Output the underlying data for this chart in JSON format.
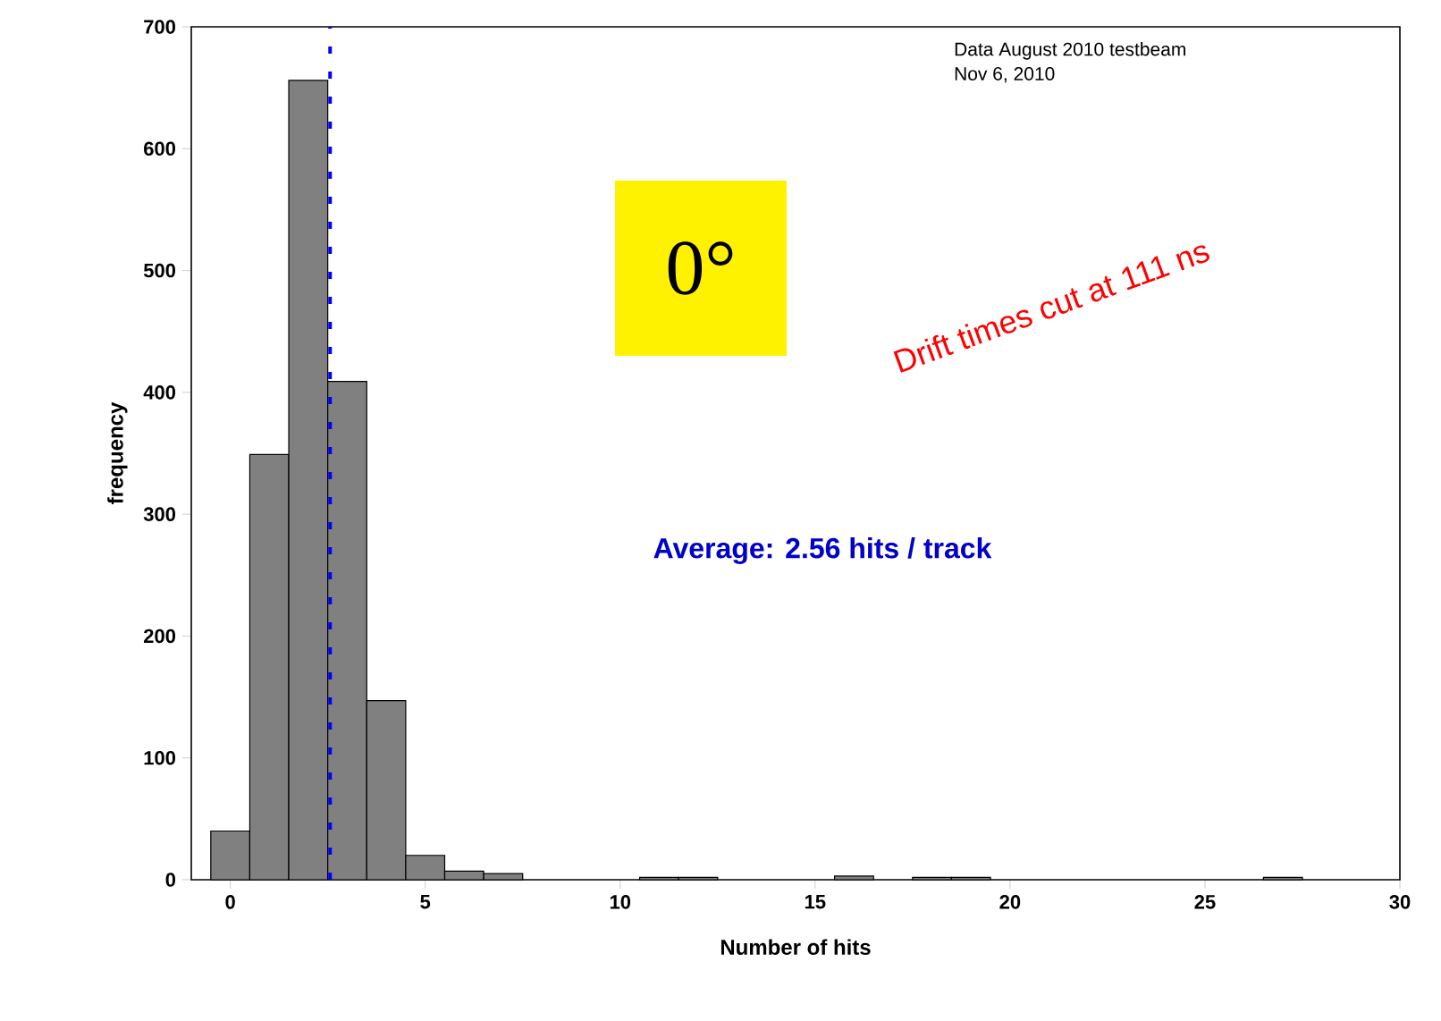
{
  "chart_data": {
    "type": "histogram",
    "xlabel": "Number of hits",
    "ylabel": "frequency",
    "bins": [
      -0.5,
      0.5,
      1.5,
      2.5,
      3.5,
      4.5,
      5.5,
      6.5,
      7.5,
      8.5,
      9.5,
      10.5,
      11.5,
      12.5,
      13.5,
      14.5,
      15.5,
      16.5,
      17.5,
      18.5,
      19.5,
      20.5,
      21.5,
      22.5,
      23.5,
      24.5,
      25.5,
      26.5,
      27.5
    ],
    "values": [
      40,
      349,
      656,
      409,
      147,
      20,
      7,
      5,
      0,
      0,
      0,
      2,
      2,
      0,
      0,
      0,
      3,
      0,
      2,
      2,
      0,
      0,
      0,
      0,
      0,
      0,
      0,
      2
    ],
    "color": "#808080",
    "xlim": [
      -1,
      30
    ],
    "ylim": [
      0,
      700
    ],
    "xticks": [
      0,
      5,
      10,
      15,
      20,
      25,
      30
    ],
    "yticks": [
      0,
      100,
      200,
      300,
      400,
      500,
      600,
      700
    ],
    "ref_lines": [
      {
        "axis": "x",
        "value": 2.56,
        "color": "#0000ff",
        "line_style": "dashed"
      }
    ],
    "annotations": [
      "Data August 2010 testbeam",
      "Nov 6, 2010",
      "0°",
      "Drift times cut at 111 ns",
      "Average: 2.56 hits / track"
    ]
  }
}
